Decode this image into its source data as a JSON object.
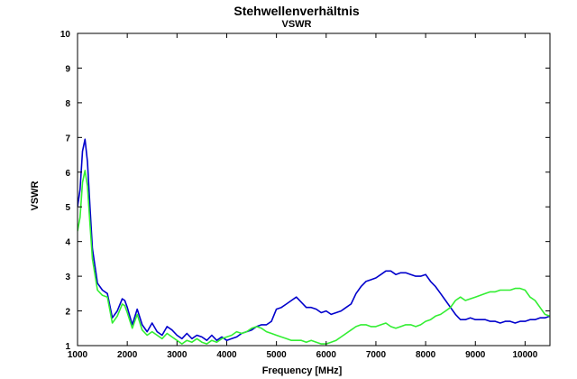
{
  "chart_data": {
    "type": "line",
    "title": "Stehwellenverhältnis",
    "subtitle": "VSWR",
    "xlabel": "Frequency [MHz]",
    "ylabel": "VSWR",
    "xlim": [
      1000,
      10500
    ],
    "ylim": [
      1,
      10
    ],
    "x_ticks": [
      "1000",
      "2000",
      "3000",
      "4000",
      "5000",
      "6000",
      "7000",
      "8000",
      "9000",
      "10000"
    ],
    "y_ticks": [
      "1",
      "2",
      "3",
      "4",
      "5",
      "6",
      "7",
      "8",
      "9",
      "10"
    ],
    "grid": false,
    "series": [
      {
        "color": "#0000cc",
        "x": [
          1000,
          1050,
          1100,
          1150,
          1200,
          1250,
          1300,
          1400,
          1500,
          1600,
          1700,
          1800,
          1900,
          1950,
          2000,
          2100,
          2200,
          2300,
          2400,
          2500,
          2600,
          2700,
          2800,
          2900,
          3000,
          3100,
          3200,
          3300,
          3400,
          3500,
          3600,
          3700,
          3800,
          3900,
          4000,
          4100,
          4200,
          4300,
          4400,
          4500,
          4600,
          4700,
          4800,
          4900,
          5000,
          5100,
          5200,
          5300,
          5400,
          5500,
          5600,
          5700,
          5800,
          5900,
          6000,
          6100,
          6200,
          6300,
          6400,
          6500,
          6600,
          6700,
          6800,
          6900,
          7000,
          7100,
          7200,
          7300,
          7400,
          7500,
          7600,
          7700,
          7800,
          7900,
          8000,
          8100,
          8200,
          8300,
          8400,
          8500,
          8600,
          8700,
          8800,
          8900,
          9000,
          9100,
          9200,
          9300,
          9400,
          9500,
          9600,
          9700,
          9800,
          9900,
          10000,
          10100,
          10200,
          10300,
          10400,
          10500
        ],
        "y": [
          5.0,
          5.5,
          6.6,
          6.95,
          6.3,
          5.0,
          3.8,
          2.8,
          2.6,
          2.5,
          1.8,
          2.0,
          2.35,
          2.3,
          2.1,
          1.6,
          2.05,
          1.6,
          1.4,
          1.65,
          1.4,
          1.3,
          1.55,
          1.45,
          1.3,
          1.2,
          1.35,
          1.2,
          1.3,
          1.25,
          1.15,
          1.3,
          1.15,
          1.25,
          1.15,
          1.2,
          1.25,
          1.35,
          1.4,
          1.45,
          1.55,
          1.6,
          1.6,
          1.7,
          2.05,
          2.1,
          2.2,
          2.3,
          2.4,
          2.25,
          2.1,
          2.1,
          2.05,
          1.95,
          2.0,
          1.9,
          1.95,
          2.0,
          2.1,
          2.2,
          2.5,
          2.7,
          2.85,
          2.9,
          2.95,
          3.05,
          3.15,
          3.15,
          3.05,
          3.1,
          3.1,
          3.05,
          3.0,
          3.0,
          3.05,
          2.85,
          2.7,
          2.5,
          2.3,
          2.1,
          1.9,
          1.75,
          1.75,
          1.8,
          1.75,
          1.75,
          1.75,
          1.7,
          1.7,
          1.65,
          1.7,
          1.7,
          1.65,
          1.7,
          1.7,
          1.75,
          1.75,
          1.8,
          1.8,
          1.85
        ]
      },
      {
        "color": "#33ee33",
        "x": [
          1000,
          1050,
          1100,
          1150,
          1200,
          1250,
          1300,
          1400,
          1500,
          1600,
          1700,
          1800,
          1900,
          1950,
          2000,
          2100,
          2200,
          2300,
          2400,
          2500,
          2600,
          2700,
          2800,
          2900,
          3000,
          3100,
          3200,
          3300,
          3400,
          3500,
          3600,
          3700,
          3800,
          3900,
          4000,
          4100,
          4200,
          4300,
          4400,
          4500,
          4600,
          4700,
          4800,
          4900,
          5000,
          5100,
          5200,
          5300,
          5400,
          5500,
          5600,
          5700,
          5800,
          5900,
          6000,
          6100,
          6200,
          6300,
          6400,
          6500,
          6600,
          6700,
          6800,
          6900,
          7000,
          7100,
          7200,
          7300,
          7400,
          7500,
          7600,
          7700,
          7800,
          7900,
          8000,
          8100,
          8200,
          8300,
          8400,
          8500,
          8600,
          8700,
          8800,
          8900,
          9000,
          9100,
          9200,
          9300,
          9400,
          9500,
          9600,
          9700,
          9800,
          9900,
          10000,
          10100,
          10200,
          10300,
          10400,
          10500
        ],
        "y": [
          4.3,
          4.7,
          5.7,
          6.05,
          5.6,
          4.5,
          3.5,
          2.6,
          2.45,
          2.4,
          1.65,
          1.85,
          2.2,
          2.15,
          1.95,
          1.5,
          1.9,
          1.45,
          1.3,
          1.4,
          1.3,
          1.2,
          1.35,
          1.25,
          1.15,
          1.05,
          1.15,
          1.1,
          1.2,
          1.1,
          1.05,
          1.15,
          1.1,
          1.2,
          1.25,
          1.3,
          1.4,
          1.35,
          1.4,
          1.5,
          1.55,
          1.5,
          1.4,
          1.35,
          1.3,
          1.25,
          1.2,
          1.15,
          1.15,
          1.15,
          1.1,
          1.15,
          1.1,
          1.05,
          1.05,
          1.1,
          1.15,
          1.25,
          1.35,
          1.45,
          1.55,
          1.6,
          1.6,
          1.55,
          1.55,
          1.6,
          1.65,
          1.55,
          1.5,
          1.55,
          1.6,
          1.6,
          1.55,
          1.6,
          1.7,
          1.75,
          1.85,
          1.9,
          2.0,
          2.1,
          2.3,
          2.4,
          2.3,
          2.35,
          2.4,
          2.45,
          2.5,
          2.55,
          2.55,
          2.6,
          2.6,
          2.6,
          2.65,
          2.65,
          2.6,
          2.4,
          2.3,
          2.1,
          1.9,
          1.85
        ]
      }
    ]
  }
}
